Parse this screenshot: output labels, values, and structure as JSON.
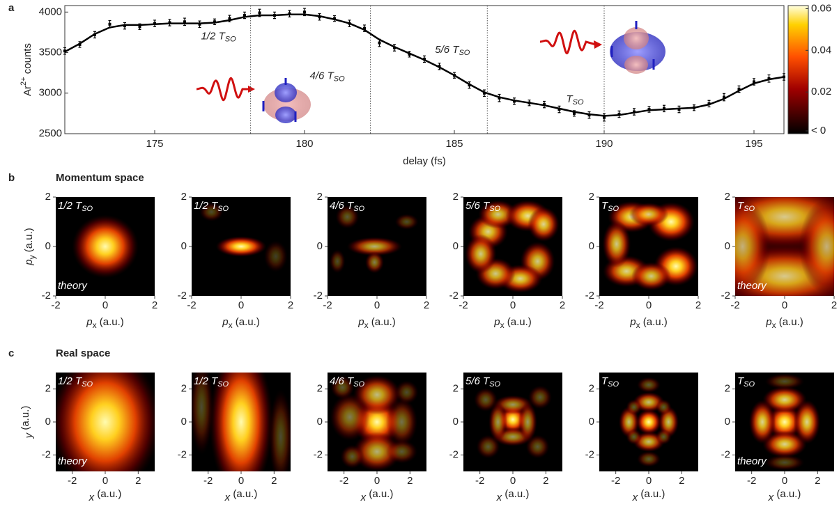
{
  "chart_data": [
    {
      "type": "line",
      "panel_label": "a",
      "ylabel": {
        "text": "Ar",
        "sup": "2+",
        "rest": "counts"
      },
      "xlabel": "delay (fs)",
      "x": [
        172,
        172.5,
        173,
        173.5,
        174,
        174.5,
        175,
        175.5,
        176,
        176.5,
        177,
        177.5,
        178,
        178.5,
        179,
        179.5,
        180,
        180.5,
        181,
        181.5,
        182,
        182.5,
        183,
        183.5,
        184,
        184.5,
        185,
        185.5,
        186,
        186.5,
        187,
        187.5,
        188,
        188.5,
        189,
        189.5,
        190,
        190.5,
        191,
        191.5,
        192,
        192.5,
        193,
        193.5,
        194,
        194.5,
        195,
        195.5,
        196
      ],
      "series": [
        {
          "color": "#000000",
          "values": [
            3520,
            3600,
            3720,
            3850,
            3830,
            3820,
            3860,
            3870,
            3880,
            3850,
            3880,
            3920,
            3960,
            3990,
            3960,
            3980,
            4000,
            3940,
            3920,
            3860,
            3800,
            3620,
            3560,
            3480,
            3420,
            3330,
            3220,
            3100,
            3000,
            2940,
            2900,
            2880,
            2860,
            2800,
            2750,
            2730,
            2700,
            2740,
            2770,
            2800,
            2810,
            2800,
            2820,
            2870,
            2950,
            3050,
            3140,
            3180,
            3200
          ],
          "errors": [
            40,
            35,
            40,
            45,
            40,
            35,
            40,
            40,
            45,
            40,
            35,
            40,
            40,
            45,
            40,
            40,
            45,
            40,
            35,
            40,
            40,
            45,
            40,
            35,
            40,
            40,
            35,
            40,
            40,
            45,
            40,
            35,
            40,
            40,
            35,
            40,
            45,
            40,
            40,
            35,
            40,
            40,
            35,
            40,
            45,
            40,
            40,
            45,
            40
          ]
        },
        {
          "color": "#000000",
          "values": [
            3510,
            3610,
            3730,
            3810,
            3840,
            3840,
            3850,
            3860,
            3860,
            3860,
            3870,
            3900,
            3940,
            3960,
            3960,
            3970,
            3970,
            3950,
            3910,
            3860,
            3780,
            3660,
            3570,
            3490,
            3410,
            3320,
            3220,
            3110,
            3010,
            2950,
            2910,
            2880,
            2850,
            2810,
            2770,
            2740,
            2720,
            2730,
            2760,
            2790,
            2800,
            2810,
            2820,
            2860,
            2930,
            3030,
            3120,
            3170,
            3200
          ]
        }
      ],
      "xlim": [
        172,
        196
      ],
      "xticks": [
        175,
        180,
        185,
        190,
        195
      ],
      "ylim": [
        2500,
        4080
      ],
      "yticks": [
        2500,
        3000,
        3500,
        4000
      ],
      "markers": [
        {
          "x": 178.2,
          "text": "1/2 T",
          "sub": "SO"
        },
        {
          "x": 182.2,
          "text": "4/6 T",
          "sub": "SO"
        },
        {
          "x": 186.1,
          "text": "5/6 T",
          "sub": "SO"
        },
        {
          "x": 190,
          "text": "T",
          "sub": "SO"
        }
      ],
      "colorbar": {
        "lim": [
          0,
          0.0615
        ],
        "ticks": [
          {
            "value": 0,
            "label": "< 0"
          },
          0.02,
          0.04,
          0.06
        ]
      }
    },
    {
      "type": "heatmap",
      "panel_label": "b",
      "title": "Momentum space",
      "xlabel": {
        "text": "p",
        "sub": "x",
        "unit": "(a.u.)"
      },
      "ylabel": {
        "text": "p",
        "sub": "y",
        "unit": "(a.u.)"
      },
      "xlim": [
        -2,
        2
      ],
      "xticks": [
        -2,
        0,
        2
      ],
      "ylim": [
        -2,
        2
      ],
      "yticks": [
        -2,
        0,
        2
      ],
      "panels": [
        {
          "label": {
            "text": "1/2 T",
            "sub": "SO"
          },
          "note": "theory"
        },
        {
          "label": {
            "text": "1/2 T",
            "sub": "SO"
          }
        },
        {
          "label": {
            "text": "4/6 T",
            "sub": "SO"
          }
        },
        {
          "label": {
            "text": "5/6 T",
            "sub": "SO"
          }
        },
        {
          "label": {
            "text": "T",
            "sub": "SO"
          }
        },
        {
          "label": {
            "text": "T",
            "sub": "SO"
          },
          "note": "theory"
        }
      ]
    },
    {
      "type": "heatmap",
      "panel_label": "c",
      "title": "Real space",
      "xlabel": {
        "text": "x",
        "unit": "(a.u.)"
      },
      "ylabel": {
        "text": "y",
        "unit": "(a.u.)"
      },
      "xlim": [
        -3,
        3
      ],
      "xticks": [
        -2,
        0,
        2
      ],
      "ylim": [
        -3,
        3
      ],
      "yticks": [
        -2,
        0,
        2
      ],
      "panels": [
        {
          "label": {
            "text": "1/2 T",
            "sub": "SO"
          },
          "note": "theory"
        },
        {
          "label": {
            "text": "1/2 T",
            "sub": "SO"
          }
        },
        {
          "label": {
            "text": "4/6 T",
            "sub": "SO"
          }
        },
        {
          "label": {
            "text": "5/6 T",
            "sub": "SO"
          }
        },
        {
          "label": {
            "text": "T",
            "sub": "SO"
          }
        },
        {
          "label": {
            "text": "T",
            "sub": "SO"
          },
          "note": "theory"
        }
      ]
    }
  ]
}
